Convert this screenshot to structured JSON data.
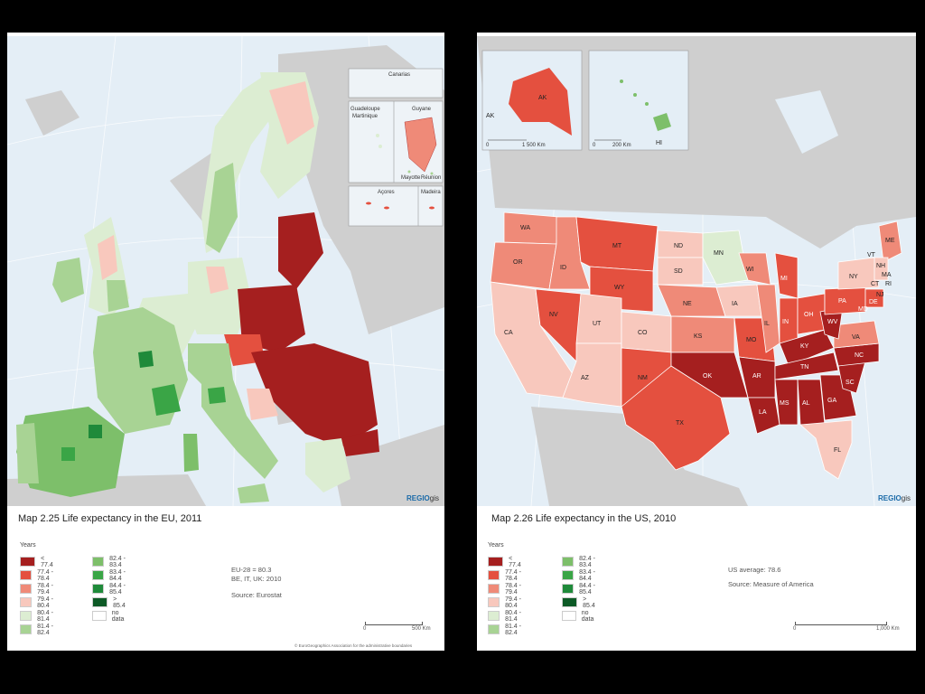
{
  "eu": {
    "title": "Map 2.25 Life expectancy in the EU, 2011",
    "legend_title": "Years",
    "legend_col1": [
      "< 77.4",
      "77.4 - 78.4",
      "78.4 - 79.4",
      "79.4 - 80.4",
      "80.4 - 81.4",
      "81.4 - 82.4"
    ],
    "legend_col2": [
      "82.4 - 83.4",
      "83.4 - 84.4",
      "84.4 - 85.4",
      "> 85.4",
      "no data"
    ],
    "note1": "EU-28 = 80.3",
    "note2": "BE, IT, UK: 2010",
    "source": "Source: Eurostat",
    "scale_zero": "0",
    "scale_label": "500 Km",
    "copyright": "© EuroGeographics Association for the administrative boundaries",
    "logo_main": "REGIO",
    "logo_sub": "gis",
    "insets": [
      "Canarias",
      "Guadeloupe",
      "Martinique",
      "Guyane",
      "Mayotte",
      "Réunion",
      "Açores",
      "Madeira"
    ]
  },
  "us": {
    "title": "Map 2.26 Life expectancy in the US, 2010",
    "legend_title": "Years",
    "legend_col1": [
      "< 77.4",
      "77.4 - 78.4",
      "78.4 - 79.4",
      "79.4 - 80.4",
      "80.4 - 81.4",
      "81.4 - 82.4"
    ],
    "legend_col2": [
      "82.4 - 83.4",
      "83.4 - 84.4",
      "84.4 - 85.4",
      "> 85.4",
      "no data"
    ],
    "note1": "US average: 78.6",
    "note2": "Source: Measure of America",
    "scale_zero": "0",
    "scale_label": "1,000 Km",
    "logo_main": "REGIO",
    "logo_sub": "gis",
    "inset_ak_label": "AK",
    "inset_ak_scale_zero": "0",
    "inset_ak_scale": "1 500 Km",
    "inset_hi_label": "HI",
    "inset_hi_scale_zero": "0",
    "inset_hi_scale": "200 Km",
    "state_labels": [
      "WA",
      "OR",
      "CA",
      "ID",
      "NV",
      "MT",
      "WY",
      "UT",
      "AZ",
      "CO",
      "NM",
      "ND",
      "SD",
      "NE",
      "KS",
      "OK",
      "TX",
      "MN",
      "IA",
      "MO",
      "AR",
      "LA",
      "WI",
      "IL",
      "MI",
      "IN",
      "OH",
      "KY",
      "TN",
      "MS",
      "AL",
      "GA",
      "FL",
      "SC",
      "NC",
      "VA",
      "WV",
      "PA",
      "NY",
      "ME",
      "VT",
      "NH",
      "MA",
      "CT",
      "RI",
      "DE",
      "MD",
      "NJ"
    ]
  },
  "colors": {
    "c1": "#a51f1f",
    "c2": "#e4503f",
    "c3": "#ef8a78",
    "c4": "#f8c8bd",
    "c5": "#dcedd2",
    "c6": "#a8d394",
    "c7": "#7dbf6a",
    "c8": "#3aa546",
    "c9": "#1f8a3a",
    "c10": "#0d5a26",
    "nodata": "#ffffff",
    "land_grey": "#cfcfcf",
    "sea": "#e4eef6"
  }
}
